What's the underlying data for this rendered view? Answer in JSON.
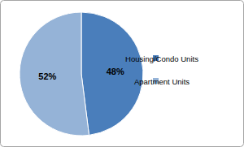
{
  "chart_data": {
    "type": "pie",
    "categories": [
      "Housing/Condo Units",
      "Apartment Units"
    ],
    "values": [
      48,
      52
    ],
    "value_labels": [
      "48%",
      "52%"
    ],
    "colors": [
      "#4a7ebb",
      "#95b3d7"
    ],
    "data_labels": true,
    "legend": "right"
  }
}
